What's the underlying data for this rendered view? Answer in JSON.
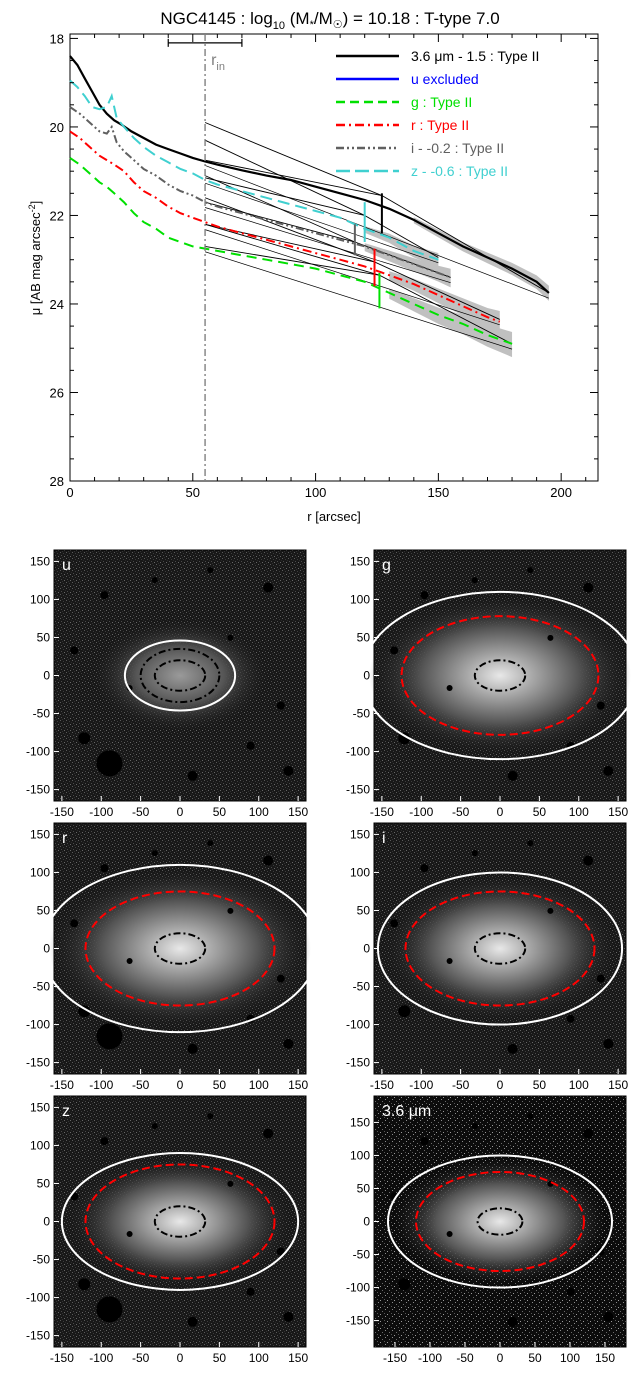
{
  "chart_data": [
    {
      "type": "line",
      "title_parts": {
        "pre": "NGC4145 : log",
        "sub10": "10",
        "mid": " (M",
        "star": "*",
        "slash": "/M",
        "sun": "☉",
        "post": ") = 10.18 : T-type 7.0"
      },
      "xlabel": "r [arcsec]",
      "ylabel_parts": {
        "pre": "μ [AB mag arcsec",
        "sup": "-2",
        "post": "]"
      },
      "xlim": [
        0,
        215
      ],
      "ylim": [
        28,
        17.9
      ],
      "y_inverted": true,
      "xticks": [
        0,
        50,
        100,
        150,
        200
      ],
      "yticks": [
        18,
        20,
        22,
        24,
        26,
        28
      ],
      "r_in": {
        "x": 55,
        "label": "r",
        "sub": "in",
        "color": "#808080",
        "err": [
          40,
          70
        ],
        "err_y": 18.1
      },
      "legend_position": "top-right",
      "legend": [
        {
          "text": "3.6 μm - 1.5 : Type II",
          "color": "#000000",
          "style": "solid",
          "text_color": "#000000"
        },
        {
          "text": "u excluded",
          "color": "#0000ff",
          "style": "solid",
          "text_color": "#0000ff"
        },
        {
          "text": "g : Type II",
          "color": "#00e000",
          "style": "dash",
          "text_color": "#00e000"
        },
        {
          "text": "r : Type II",
          "color": "#ff0000",
          "style": "dashdot",
          "text_color": "#ff0000"
        },
        {
          "text": "i - -0.2 : Type II",
          "color": "#606060",
          "style": "dashdotdot",
          "text_color": "#606060"
        },
        {
          "text": "z - -0.6 : Type II",
          "color": "#40d0d0",
          "style": "longdash",
          "text_color": "#40d0d0"
        }
      ],
      "series": [
        {
          "name": "3.6 μm - 1.5 : Type II",
          "color": "#000000",
          "dash": "",
          "width": 2.2,
          "x": [
            0,
            3,
            6,
            9,
            12,
            15,
            18,
            21,
            25,
            30,
            35,
            40,
            45,
            50,
            55,
            60,
            70,
            80,
            90,
            100,
            110,
            120,
            130,
            140,
            150,
            160,
            170,
            180,
            190,
            195
          ],
          "y": [
            18.4,
            18.6,
            18.9,
            19.2,
            19.5,
            19.7,
            19.85,
            19.95,
            20.1,
            20.25,
            20.4,
            20.5,
            20.6,
            20.7,
            20.78,
            20.85,
            20.98,
            21.1,
            21.2,
            21.35,
            21.5,
            21.65,
            21.85,
            22.1,
            22.4,
            22.7,
            22.95,
            23.2,
            23.5,
            23.75
          ],
          "band_x": [
            140,
            195
          ],
          "band_w": 0.12
        },
        {
          "name": "z - -0.6 : Type II",
          "color": "#40d0d0",
          "dash": "12,6",
          "width": 2.0,
          "x": [
            0,
            3,
            6,
            9,
            12,
            15,
            17,
            19,
            22,
            26,
            30,
            35,
            40,
            45,
            50,
            55,
            60,
            70,
            80,
            90,
            100,
            110,
            120,
            130,
            140,
            150
          ],
          "y": [
            18.95,
            19.1,
            19.3,
            19.55,
            19.6,
            19.55,
            19.3,
            19.8,
            20.0,
            20.25,
            20.45,
            20.65,
            20.8,
            20.95,
            21.05,
            21.2,
            21.3,
            21.45,
            21.6,
            21.75,
            21.9,
            22.05,
            22.3,
            22.5,
            22.8,
            23.0
          ],
          "band_x": [
            120,
            150
          ],
          "band_w": 0.12
        },
        {
          "name": "i - -0.2 : Type II",
          "color": "#606060",
          "dash": "8,3,2,3,2,3",
          "width": 2.0,
          "x": [
            0,
            4,
            8,
            12,
            15,
            17,
            19,
            22,
            26,
            30,
            35,
            40,
            45,
            50,
            55,
            60,
            70,
            80,
            90,
            100,
            110,
            120,
            130,
            140,
            150,
            155
          ],
          "y": [
            19.55,
            19.7,
            19.9,
            20.1,
            20.15,
            20.0,
            20.35,
            20.55,
            20.75,
            20.95,
            21.1,
            21.3,
            21.45,
            21.55,
            21.7,
            21.8,
            21.95,
            22.1,
            22.25,
            22.4,
            22.55,
            22.7,
            22.9,
            23.1,
            23.3,
            23.4
          ],
          "band_x": [
            115,
            155
          ],
          "band_w": 0.15
        },
        {
          "name": "r : Type II",
          "color": "#ff0000",
          "dash": "9,4,2,4",
          "width": 2.0,
          "x": [
            0,
            4,
            8,
            12,
            15,
            18,
            22,
            26,
            30,
            35,
            40,
            45,
            50,
            55,
            60,
            70,
            80,
            90,
            100,
            110,
            120,
            130,
            140,
            150,
            160,
            170,
            175
          ],
          "y": [
            20.1,
            20.25,
            20.45,
            20.65,
            20.75,
            20.85,
            21.0,
            21.25,
            21.45,
            21.6,
            21.8,
            21.95,
            22.05,
            22.15,
            22.25,
            22.4,
            22.55,
            22.7,
            22.85,
            23.0,
            23.15,
            23.35,
            23.55,
            23.8,
            24.05,
            24.3,
            24.4
          ],
          "band_x": [
            130,
            175
          ],
          "band_w": 0.18
        },
        {
          "name": "g : Type II",
          "color": "#00e000",
          "dash": "10,6",
          "width": 2.0,
          "x": [
            0,
            4,
            8,
            12,
            15,
            18,
            22,
            26,
            30,
            35,
            40,
            45,
            50,
            55,
            60,
            70,
            80,
            90,
            100,
            110,
            120,
            130,
            140,
            150,
            160,
            170,
            180
          ],
          "y": [
            20.7,
            20.85,
            21.05,
            21.25,
            21.35,
            21.5,
            21.7,
            21.95,
            22.15,
            22.3,
            22.5,
            22.6,
            22.7,
            22.75,
            22.8,
            22.9,
            23.0,
            23.1,
            23.2,
            23.35,
            23.5,
            23.75,
            24.0,
            24.25,
            24.45,
            24.7,
            24.9
          ],
          "band_x": [
            130,
            180
          ],
          "band_w": 0.2
        }
      ],
      "fits": [
        {
          "inner": [
            [
              55,
              20.75
            ],
            [
              127,
              21.55
            ]
          ],
          "outer": [
            [
              127,
              21.55
            ],
            [
              195,
              23.75
            ]
          ],
          "outer_ext": [
            [
              55,
              19.9
            ],
            [
              127,
              21.55
            ]
          ]
        },
        {
          "inner": [
            [
              55,
              21.15
            ],
            [
              120,
              22.0
            ]
          ],
          "outer": [
            [
              120,
              22.0
            ],
            [
              150,
              22.95
            ]
          ],
          "outer_ext": [
            [
              55,
              20.3
            ],
            [
              120,
              22.0
            ]
          ]
        },
        {
          "inner": [
            [
              55,
              21.7
            ],
            [
              116,
              22.6
            ]
          ],
          "outer": [
            [
              116,
              22.6
            ],
            [
              155,
              23.4
            ]
          ],
          "outer_ext": [
            [
              55,
              21.1
            ],
            [
              116,
              22.6
            ]
          ]
        },
        {
          "inner": [
            [
              55,
              22.2
            ],
            [
              124,
              23.05
            ]
          ],
          "outer": [
            [
              124,
              23.05
            ],
            [
              175,
              24.35
            ]
          ],
          "outer_ext": [
            [
              55,
              21.6
            ],
            [
              124,
              23.05
            ]
          ]
        },
        {
          "inner": [
            [
              55,
              22.7
            ],
            [
              126,
              23.35
            ]
          ],
          "outer": [
            [
              126,
              23.35
            ],
            [
              180,
              24.9
            ]
          ],
          "outer_ext": [
            [
              55,
              22.2
            ],
            [
              126,
              23.35
            ]
          ]
        }
      ],
      "breaks": [
        {
          "x": 127,
          "y0": 21.5,
          "y1": 22.4,
          "color": "#000000"
        },
        {
          "x": 120,
          "y0": 21.7,
          "y1": 22.6,
          "color": "#40d0d0"
        },
        {
          "x": 116,
          "y0": 22.2,
          "y1": 22.9,
          "color": "#606060"
        },
        {
          "x": 124,
          "y0": 22.75,
          "y1": 23.6,
          "color": "#ff0000"
        },
        {
          "x": 126,
          "y0": 23.3,
          "y1": 24.1,
          "color": "#00e000"
        }
      ]
    },
    {
      "type": "image",
      "panels": [
        {
          "label": "u",
          "xticks": [
            -150,
            -100,
            -50,
            0,
            50,
            100,
            150
          ],
          "xlim": [
            -160,
            160
          ],
          "yticks": [
            150,
            100,
            50,
            0,
            -50,
            -100,
            -150
          ],
          "ylim": [
            -165,
            165
          ],
          "ellipses": [
            {
              "a": 50,
              "b": 35,
              "color": "#000000",
              "style": "dashdot"
            },
            {
              "a": 32,
              "b": 20,
              "color": "#000000",
              "style": "dashdot"
            },
            {
              "a": 70,
              "b": 46,
              "color": "#ffffff",
              "style": "solid"
            }
          ]
        },
        {
          "label": "g",
          "xticks": [
            -150,
            -100,
            -50,
            0,
            50,
            100,
            150
          ],
          "xlim": [
            -160,
            160
          ],
          "yticks": [
            150,
            100,
            50,
            0,
            -50,
            -100,
            -150
          ],
          "ylim": [
            -165,
            165
          ],
          "ellipses": [
            {
              "a": 32,
              "b": 20,
              "color": "#000000",
              "style": "dashdot"
            },
            {
              "a": 125,
              "b": 78,
              "color": "#ff0000",
              "style": "dash"
            },
            {
              "a": 175,
              "b": 110,
              "color": "#ffffff",
              "style": "solid"
            }
          ]
        },
        {
          "label": "r",
          "xticks": [
            -150,
            -100,
            -50,
            0,
            50,
            100,
            150
          ],
          "xlim": [
            -160,
            160
          ],
          "yticks": [
            150,
            100,
            50,
            0,
            -50,
            -100,
            -150
          ],
          "ylim": [
            -165,
            165
          ],
          "ellipses": [
            {
              "a": 32,
              "b": 20,
              "color": "#000000",
              "style": "dashdot"
            },
            {
              "a": 120,
              "b": 75,
              "color": "#ff0000",
              "style": "dash"
            },
            {
              "a": 175,
              "b": 110,
              "color": "#ffffff",
              "style": "solid"
            }
          ]
        },
        {
          "label": "i",
          "xticks": [
            -150,
            -100,
            -50,
            0,
            50,
            100,
            150
          ],
          "xlim": [
            -160,
            160
          ],
          "yticks": [
            150,
            100,
            50,
            0,
            -50,
            -100,
            -150
          ],
          "ylim": [
            -165,
            165
          ],
          "ellipses": [
            {
              "a": 32,
              "b": 20,
              "color": "#000000",
              "style": "dashdot"
            },
            {
              "a": 120,
              "b": 75,
              "color": "#ff0000",
              "style": "dash"
            },
            {
              "a": 155,
              "b": 100,
              "color": "#ffffff",
              "style": "solid"
            }
          ]
        },
        {
          "label": "z",
          "xticks": [
            -150,
            -100,
            -50,
            0,
            50,
            100,
            150
          ],
          "xlim": [
            -160,
            160
          ],
          "yticks": [
            150,
            100,
            50,
            0,
            -50,
            -100,
            -150
          ],
          "ylim": [
            -165,
            165
          ],
          "ellipses": [
            {
              "a": 32,
              "b": 20,
              "color": "#000000",
              "style": "dashdot"
            },
            {
              "a": 120,
              "b": 75,
              "color": "#ff0000",
              "style": "dash"
            },
            {
              "a": 150,
              "b": 90,
              "color": "#ffffff",
              "style": "solid"
            }
          ]
        },
        {
          "label": "3.6 μm",
          "xticks": [
            -150,
            -100,
            -50,
            0,
            50,
            100,
            150
          ],
          "xlim": [
            -180,
            180
          ],
          "yticks": [
            150,
            100,
            50,
            0,
            -50,
            -100,
            -150
          ],
          "ylim": [
            -190,
            190
          ],
          "ellipses": [
            {
              "a": 32,
              "b": 20,
              "color": "#000000",
              "style": "dashdot"
            },
            {
              "a": 120,
              "b": 75,
              "color": "#ff0000",
              "style": "dash"
            },
            {
              "a": 160,
              "b": 100,
              "color": "#ffffff",
              "style": "solid"
            }
          ]
        }
      ],
      "xtick_labels": [
        "-150",
        "-100",
        "-50",
        "0",
        "50",
        "100",
        "150"
      ],
      "xtick_labels_36": [
        "-150",
        "-100",
        "-50",
        "0",
        "50",
        "100",
        "150"
      ]
    }
  ],
  "colors": {
    "background": "#ffffff",
    "panel_bg": "#1a1a1a",
    "band": "#c0c0c0",
    "fit": "#000000"
  }
}
